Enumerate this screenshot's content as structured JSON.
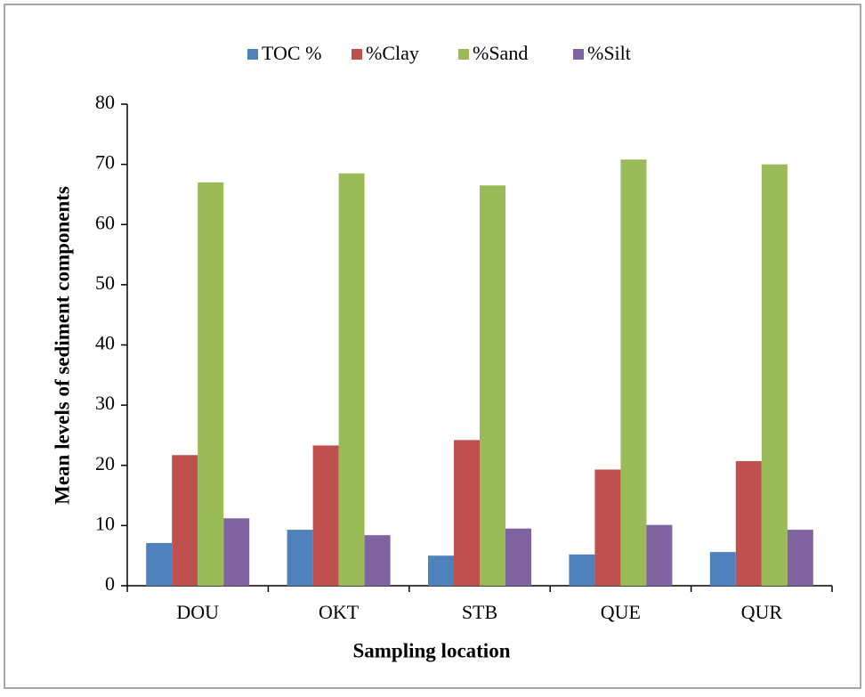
{
  "chart_data": {
    "type": "bar",
    "x_label": "Sampling location",
    "y_label": "Mean levels of sediment components",
    "categories": [
      "DOU",
      "OKT",
      "STB",
      "QUE",
      "QUR"
    ],
    "series": [
      {
        "name": "TOC %",
        "color": "#4f81bd",
        "values": [
          7.1,
          9.3,
          5.0,
          5.2,
          5.6
        ]
      },
      {
        "name": "%Clay",
        "color": "#c0504d",
        "values": [
          21.7,
          23.3,
          24.2,
          19.3,
          20.7
        ]
      },
      {
        "name": "%Sand",
        "color": "#9bbb59",
        "values": [
          67.0,
          68.5,
          66.5,
          70.8,
          70.0
        ]
      },
      {
        "name": "%Silt",
        "color": "#8064a2",
        "values": [
          11.2,
          8.4,
          9.5,
          10.1,
          9.3
        ]
      }
    ],
    "ylim": [
      0,
      80
    ],
    "yticks": [
      0,
      10,
      20,
      30,
      40,
      50,
      60,
      70,
      80
    ],
    "legend": "top"
  }
}
